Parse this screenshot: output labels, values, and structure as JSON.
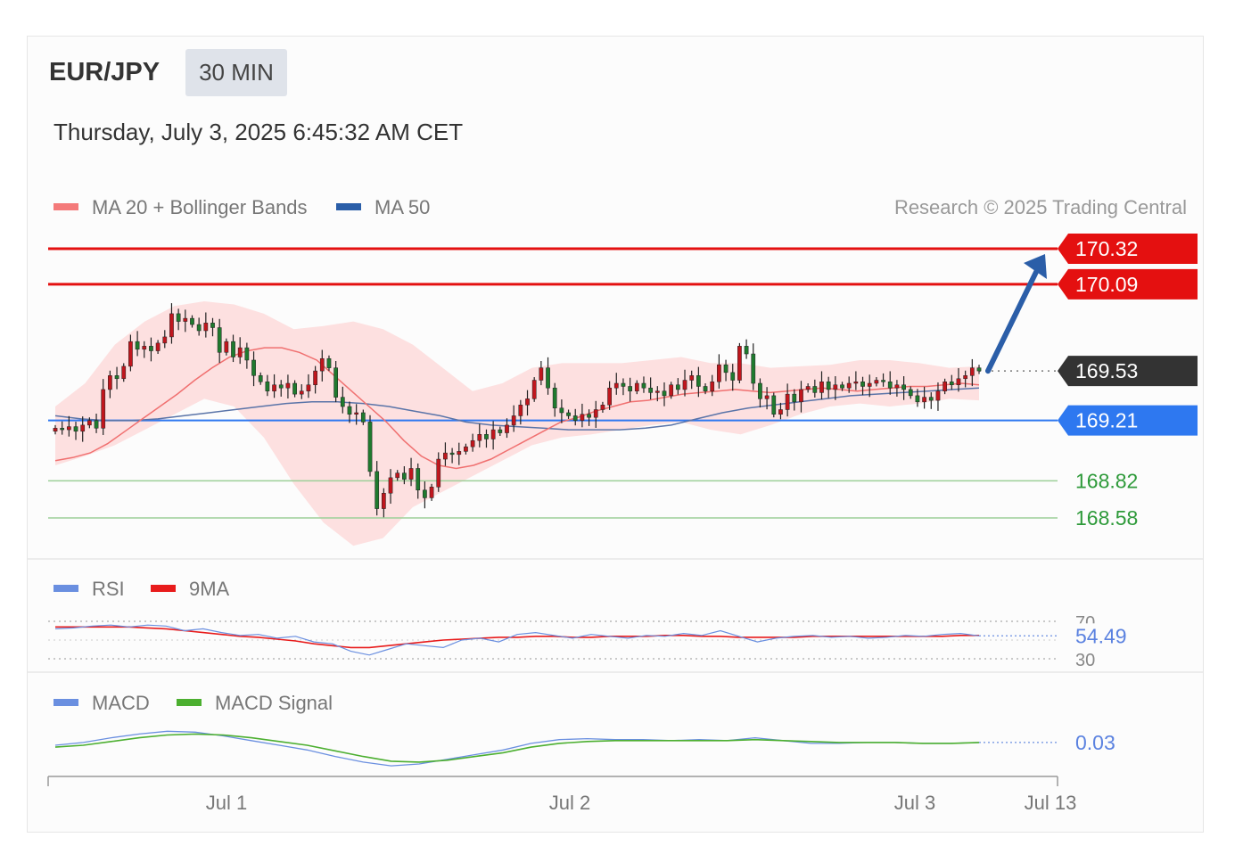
{
  "header": {
    "symbol": "EUR/JPY",
    "interval": "30 MIN",
    "datetime": "Thursday, July 3, 2025 6:45:32 AM CET"
  },
  "main_legend": [
    {
      "label": "MA 20 + Bollinger Bands",
      "color": "#f47a7a"
    },
    {
      "label": "MA 50",
      "color": "#2a5ea8"
    }
  ],
  "copyright": "Research © 2025 Trading Central",
  "rsi_legend": [
    {
      "label": "RSI",
      "color": "#6a8fe0"
    },
    {
      "label": "9MA",
      "color": "#e81c1c"
    }
  ],
  "macd_legend": [
    {
      "label": "MACD",
      "color": "#6a8fe0"
    },
    {
      "label": "MACD Signal",
      "color": "#4caf30"
    }
  ],
  "chart_data": [
    {
      "type": "candlestick",
      "title": "EUR/JPY 30 MIN",
      "x_labels": [
        "Jul 1",
        "Jul 2",
        "Jul 3",
        "Jul 13"
      ],
      "levels": [
        {
          "value": 170.32,
          "label": "170.32",
          "kind": "resistance",
          "color": "#e41010"
        },
        {
          "value": 170.09,
          "label": "170.09",
          "kind": "resistance",
          "color": "#e41010"
        },
        {
          "value": 169.53,
          "label": "169.53",
          "kind": "last price",
          "color": "#333333"
        },
        {
          "value": 169.21,
          "label": "169.21",
          "kind": "pivot",
          "color": "#2e78f0"
        },
        {
          "value": 168.82,
          "label": "168.82",
          "kind": "support",
          "color": "#2e9a3a"
        },
        {
          "value": 168.58,
          "label": "168.58",
          "kind": "support",
          "color": "#2e9a3a"
        }
      ],
      "target_arrow": {
        "from": 169.53,
        "to": 170.32,
        "direction": "up"
      },
      "ylim": [
        168.35,
        170.45
      ],
      "close_series": [
        169.16,
        169.15,
        169.17,
        169.14,
        169.18,
        169.21,
        169.16,
        169.41,
        169.5,
        169.48,
        169.56,
        169.72,
        169.67,
        169.69,
        169.66,
        169.71,
        169.75,
        169.9,
        169.85,
        169.87,
        169.83,
        169.79,
        169.84,
        169.81,
        169.65,
        169.72,
        169.62,
        169.68,
        169.6,
        169.5,
        169.46,
        169.4,
        169.44,
        169.42,
        169.45,
        169.38,
        169.4,
        169.44,
        169.53,
        169.61,
        169.55,
        169.36,
        169.3,
        169.25,
        169.26,
        169.2,
        168.88,
        168.64,
        168.74,
        168.84,
        168.87,
        168.83,
        168.9,
        168.76,
        168.71,
        168.78,
        168.96,
        169.0,
        168.99,
        169.01,
        169.04,
        169.08,
        169.12,
        169.09,
        169.15,
        169.13,
        169.18,
        169.24,
        169.31,
        169.35,
        169.47,
        169.55,
        169.42,
        169.29,
        169.26,
        169.24,
        169.21,
        169.25,
        169.23,
        169.28,
        169.31,
        169.42,
        169.45,
        169.43,
        169.4,
        169.45,
        169.42,
        169.39,
        169.4,
        169.37,
        169.44,
        169.41,
        169.47,
        169.5,
        169.43,
        169.4,
        169.46,
        169.57,
        169.52,
        169.47,
        169.69,
        169.64,
        169.45,
        169.35,
        169.37,
        169.25,
        169.28,
        169.38,
        169.33,
        169.41,
        169.43,
        169.39,
        169.46,
        169.41,
        169.44,
        169.42,
        169.45,
        169.46,
        169.43,
        169.45,
        169.47,
        169.46,
        169.42,
        169.44,
        169.41,
        169.37,
        169.33,
        169.36,
        169.34,
        169.4,
        169.46,
        169.44,
        169.48,
        169.5,
        169.55,
        169.53
      ],
      "ma20_series": [
        168.95,
        168.97,
        169.0,
        169.06,
        169.14,
        169.22,
        169.3,
        169.38,
        169.47,
        169.55,
        169.62,
        169.66,
        169.68,
        169.68,
        169.65,
        169.6,
        169.5,
        169.4,
        169.3,
        169.2,
        169.08,
        168.98,
        168.92,
        168.9,
        168.92,
        168.96,
        169.02,
        169.08,
        169.14,
        169.2,
        169.23,
        169.27,
        169.3,
        169.33,
        169.34,
        169.36,
        169.38,
        169.39,
        169.4,
        169.41,
        169.4,
        169.39,
        169.4,
        169.41,
        169.42,
        169.41,
        169.4,
        169.41,
        169.42,
        169.43,
        169.43,
        169.44,
        169.45,
        169.44
      ],
      "ma50_series": [
        169.24,
        169.22,
        169.21,
        169.21,
        169.22,
        169.24,
        169.26,
        169.28,
        169.3,
        169.32,
        169.33,
        169.33,
        169.32,
        169.3,
        169.27,
        169.24,
        169.2,
        169.18,
        169.17,
        169.16,
        169.15,
        169.15,
        169.15,
        169.16,
        169.18,
        169.22,
        169.26,
        169.29,
        169.31,
        169.33,
        169.35,
        169.37,
        169.38,
        169.39,
        169.4,
        169.41,
        169.42
      ],
      "bb_upper_series": [
        169.3,
        169.45,
        169.7,
        169.85,
        169.95,
        169.98,
        169.96,
        169.9,
        169.8,
        169.82,
        169.85,
        169.8,
        169.7,
        169.55,
        169.4,
        169.45,
        169.55,
        169.58,
        169.58,
        169.58,
        169.6,
        169.62,
        169.58,
        169.58,
        169.55,
        169.56,
        169.57,
        169.6,
        169.6,
        169.58,
        169.55,
        169.56
      ],
      "bb_lower_series": [
        168.92,
        168.98,
        169.05,
        169.15,
        169.25,
        169.35,
        169.3,
        169.1,
        168.8,
        168.55,
        168.4,
        168.45,
        168.65,
        168.75,
        168.85,
        168.95,
        169.05,
        169.1,
        169.12,
        169.15,
        169.18,
        169.2,
        169.15,
        169.12,
        169.18,
        169.25,
        169.3,
        169.32,
        169.3,
        169.32,
        169.35,
        169.34
      ]
    },
    {
      "type": "line",
      "title": "RSI",
      "reference_lines": [
        70,
        30
      ],
      "tick_labels": [
        "70",
        "30"
      ],
      "last_value": 54.49,
      "last_label": "54.49",
      "series": [
        {
          "name": "RSI",
          "values": [
            62,
            63,
            65,
            66,
            64,
            66,
            65,
            60,
            62,
            58,
            55,
            56,
            52,
            54,
            48,
            46,
            38,
            34,
            40,
            46,
            44,
            42,
            50,
            52,
            48,
            56,
            58,
            55,
            52,
            56,
            54,
            52,
            55,
            54,
            57,
            55,
            60,
            54,
            48,
            52,
            54,
            55,
            53,
            54,
            52,
            53,
            55,
            54,
            56,
            57,
            54.49
          ]
        },
        {
          "name": "9MA",
          "values": [
            64,
            64,
            64,
            64,
            64,
            63,
            62,
            60,
            58,
            56,
            54,
            53,
            51,
            49,
            46,
            44,
            42,
            42,
            44,
            46,
            48,
            50,
            51,
            52,
            53,
            53,
            54,
            54,
            53,
            53,
            54,
            54,
            54,
            55,
            55,
            54,
            54,
            53,
            53,
            53,
            53,
            54,
            54,
            54,
            54,
            54,
            54,
            54,
            54,
            55,
            55
          ]
        }
      ]
    },
    {
      "type": "line",
      "title": "MACD",
      "last_value": 0.03,
      "last_label": "0.03",
      "series": [
        {
          "name": "MACD",
          "values": [
            0.0,
            0.03,
            0.08,
            0.12,
            0.15,
            0.14,
            0.1,
            0.05,
            0.0,
            -0.05,
            -0.12,
            -0.18,
            -0.22,
            -0.2,
            -0.15,
            -0.1,
            -0.05,
            0.02,
            0.06,
            0.07,
            0.06,
            0.06,
            0.05,
            0.06,
            0.05,
            0.08,
            0.05,
            0.02,
            0.02,
            0.03,
            0.03,
            0.02,
            0.02,
            0.03
          ]
        },
        {
          "name": "MACD Signal",
          "values": [
            -0.02,
            0.0,
            0.04,
            0.08,
            0.11,
            0.12,
            0.11,
            0.08,
            0.04,
            0.0,
            -0.06,
            -0.12,
            -0.17,
            -0.18,
            -0.16,
            -0.12,
            -0.08,
            -0.02,
            0.02,
            0.04,
            0.05,
            0.05,
            0.05,
            0.05,
            0.05,
            0.06,
            0.05,
            0.04,
            0.03,
            0.03,
            0.03,
            0.02,
            0.02,
            0.03
          ]
        }
      ]
    }
  ]
}
